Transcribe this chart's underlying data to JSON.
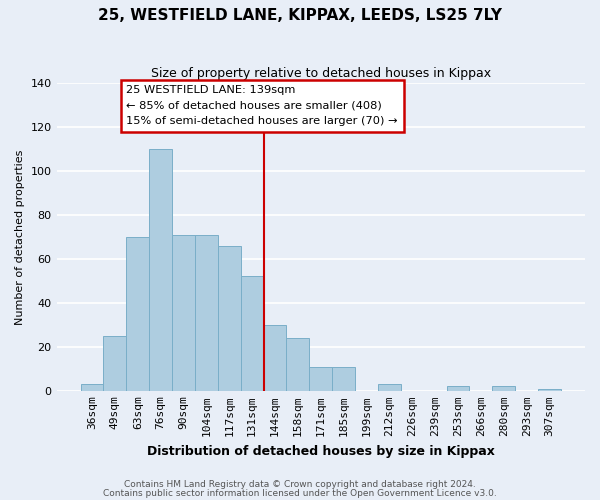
{
  "title": "25, WESTFIELD LANE, KIPPAX, LEEDS, LS25 7LY",
  "subtitle": "Size of property relative to detached houses in Kippax",
  "xlabel": "Distribution of detached houses by size in Kippax",
  "ylabel": "Number of detached properties",
  "bin_labels": [
    "36sqm",
    "49sqm",
    "63sqm",
    "76sqm",
    "90sqm",
    "104sqm",
    "117sqm",
    "131sqm",
    "144sqm",
    "158sqm",
    "171sqm",
    "185sqm",
    "199sqm",
    "212sqm",
    "226sqm",
    "239sqm",
    "253sqm",
    "266sqm",
    "280sqm",
    "293sqm",
    "307sqm"
  ],
  "bar_heights": [
    3,
    25,
    70,
    110,
    71,
    71,
    66,
    52,
    30,
    24,
    11,
    11,
    0,
    3,
    0,
    0,
    2,
    0,
    2,
    0,
    1
  ],
  "bar_color": "#aecde0",
  "bar_edge_color": "#7aaec8",
  "vline_color": "#cc0000",
  "ylim": [
    0,
    140
  ],
  "yticks": [
    0,
    20,
    40,
    60,
    80,
    100,
    120,
    140
  ],
  "annotation_title": "25 WESTFIELD LANE: 139sqm",
  "annotation_line1": "← 85% of detached houses are smaller (408)",
  "annotation_line2": "15% of semi-detached houses are larger (70) →",
  "annotation_box_facecolor": "#ffffff",
  "annotation_box_edgecolor": "#cc0000",
  "bg_color": "#e8eef7",
  "plot_bg_color": "#e8eef7",
  "grid_color": "#ffffff",
  "footer1": "Contains HM Land Registry data © Crown copyright and database right 2024.",
  "footer2": "Contains public sector information licensed under the Open Government Licence v3.0."
}
